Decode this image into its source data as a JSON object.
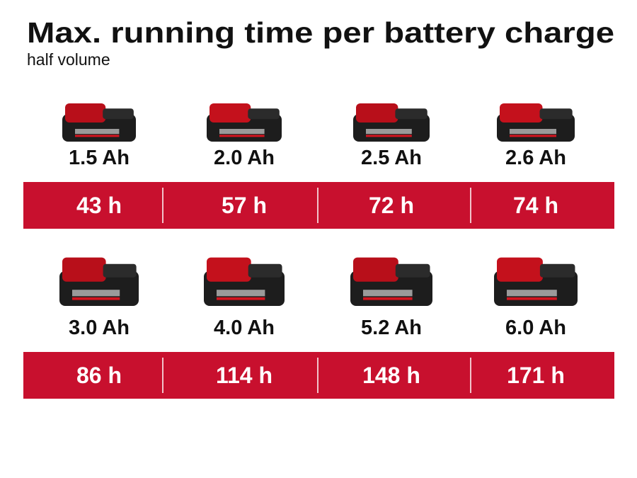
{
  "header": {
    "title": "Max. running time per battery charge",
    "subtitle": "half volume"
  },
  "rows": [
    {
      "items": [
        {
          "capacity": "1.5 Ah",
          "runtime": "43 h"
        },
        {
          "capacity": "2.0 Ah",
          "runtime": "57 h"
        },
        {
          "capacity": "2.5 Ah",
          "runtime": "72 h"
        },
        {
          "capacity": "2.6 Ah",
          "runtime": "74 h"
        }
      ]
    },
    {
      "items": [
        {
          "capacity": "3.0 Ah",
          "runtime": "86 h"
        },
        {
          "capacity": "4.0 Ah",
          "runtime": "114 h"
        },
        {
          "capacity": "5.2 Ah",
          "runtime": "148 h"
        },
        {
          "capacity": "6.0 Ah",
          "runtime": "171 h"
        }
      ]
    }
  ]
}
